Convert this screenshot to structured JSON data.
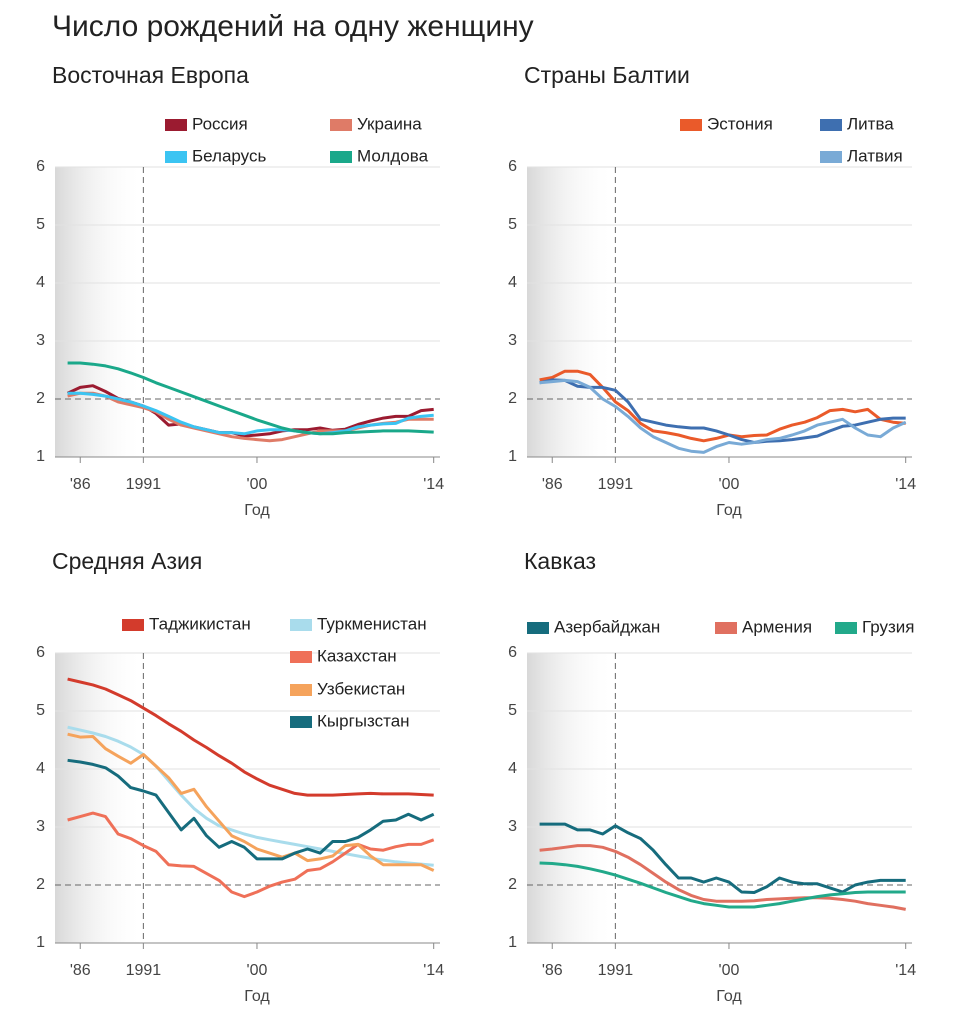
{
  "title": "Число рождений на одну женщину",
  "chart_data": [
    {
      "type": "line",
      "title": "Восточная Европа",
      "xlabel": "Год",
      "x": [
        1985,
        1986,
        1987,
        1988,
        1989,
        1990,
        1991,
        1992,
        1993,
        1994,
        1995,
        1996,
        1997,
        1998,
        1999,
        2000,
        2001,
        2002,
        2003,
        2004,
        2005,
        2006,
        2007,
        2008,
        2009,
        2010,
        2011,
        2012,
        2013,
        2014
      ],
      "xlim": [
        1984,
        2014.5
      ],
      "xticks": [
        {
          "value": 1986,
          "label": "'86"
        },
        1991,
        {
          "value": 2000,
          "label": "'00"
        },
        {
          "value": 2014,
          "label": "'14"
        }
      ],
      "ylim": [
        1,
        6
      ],
      "yticks": [
        1,
        2,
        3,
        4,
        5,
        6
      ],
      "hline": 2,
      "vline": 1991,
      "grid": true,
      "series": [
        {
          "name": "Россия",
          "color": "#9b1b30",
          "values": [
            2.1,
            2.2,
            2.23,
            2.13,
            2.01,
            1.95,
            1.88,
            1.75,
            1.55,
            1.57,
            1.52,
            1.47,
            1.42,
            1.42,
            1.36,
            1.38,
            1.4,
            1.45,
            1.47,
            1.47,
            1.5,
            1.46,
            1.48,
            1.56,
            1.62,
            1.67,
            1.7,
            1.7,
            1.8,
            1.82
          ]
        },
        {
          "name": "Украина",
          "color": "#df7b67",
          "values": [
            2.05,
            2.1,
            2.1,
            2.05,
            1.95,
            1.9,
            1.85,
            1.78,
            1.65,
            1.55,
            1.5,
            1.45,
            1.4,
            1.35,
            1.32,
            1.3,
            1.28,
            1.3,
            1.35,
            1.4,
            1.45,
            1.45,
            1.45,
            1.5,
            1.55,
            1.58,
            1.6,
            1.65,
            1.65,
            1.65
          ]
        },
        {
          "name": "Беларусь",
          "color": "#3bc4f2",
          "values": [
            2.1,
            2.1,
            2.08,
            2.05,
            2.0,
            1.95,
            1.88,
            1.8,
            1.7,
            1.6,
            1.52,
            1.47,
            1.42,
            1.42,
            1.4,
            1.45,
            1.47,
            1.47,
            1.45,
            1.42,
            1.4,
            1.42,
            1.45,
            1.52,
            1.55,
            1.57,
            1.58,
            1.67,
            1.7,
            1.72
          ]
        },
        {
          "name": "Молдова",
          "color": "#1aa88a",
          "values": [
            2.62,
            2.62,
            2.6,
            2.57,
            2.52,
            2.45,
            2.37,
            2.28,
            2.2,
            2.12,
            2.04,
            1.96,
            1.88,
            1.8,
            1.72,
            1.64,
            1.57,
            1.5,
            1.45,
            1.42,
            1.4,
            1.4,
            1.42,
            1.43,
            1.44,
            1.45,
            1.45,
            1.45,
            1.44,
            1.43
          ]
        }
      ]
    },
    {
      "type": "line",
      "title": "Страны Балтии",
      "xlabel": "Год",
      "x": [
        1985,
        1986,
        1987,
        1988,
        1989,
        1990,
        1991,
        1992,
        1993,
        1994,
        1995,
        1996,
        1997,
        1998,
        1999,
        2000,
        2001,
        2002,
        2003,
        2004,
        2005,
        2006,
        2007,
        2008,
        2009,
        2010,
        2011,
        2012,
        2013,
        2014
      ],
      "xlim": [
        1984,
        2014.5
      ],
      "xticks": [
        {
          "value": 1986,
          "label": "'86"
        },
        1991,
        {
          "value": 2000,
          "label": "'00"
        },
        {
          "value": 2014,
          "label": "'14"
        }
      ],
      "ylim": [
        1,
        6
      ],
      "yticks": [
        1,
        2,
        3,
        4,
        5,
        6
      ],
      "hline": 2,
      "vline": 1991,
      "grid": true,
      "series": [
        {
          "name": "Эстония",
          "color": "#ea5a2a",
          "values": [
            2.33,
            2.37,
            2.48,
            2.48,
            2.42,
            2.2,
            1.95,
            1.8,
            1.58,
            1.45,
            1.42,
            1.38,
            1.32,
            1.28,
            1.32,
            1.38,
            1.35,
            1.37,
            1.38,
            1.48,
            1.55,
            1.6,
            1.68,
            1.8,
            1.82,
            1.78,
            1.82,
            1.65,
            1.6,
            1.58
          ]
        },
        {
          "name": "Литва",
          "color": "#3e6fb0",
          "values": [
            2.28,
            2.33,
            2.32,
            2.22,
            2.2,
            2.2,
            2.15,
            1.95,
            1.65,
            1.6,
            1.55,
            1.52,
            1.5,
            1.5,
            1.45,
            1.38,
            1.3,
            1.25,
            1.27,
            1.28,
            1.3,
            1.33,
            1.36,
            1.45,
            1.53,
            1.55,
            1.6,
            1.65,
            1.67,
            1.67
          ]
        },
        {
          "name": "Латвия",
          "color": "#79aad6",
          "values": [
            2.28,
            2.3,
            2.32,
            2.3,
            2.2,
            2.0,
            1.87,
            1.7,
            1.5,
            1.35,
            1.25,
            1.15,
            1.1,
            1.08,
            1.18,
            1.25,
            1.22,
            1.25,
            1.3,
            1.32,
            1.38,
            1.45,
            1.55,
            1.6,
            1.65,
            1.5,
            1.38,
            1.35,
            1.5,
            1.6
          ]
        }
      ]
    },
    {
      "type": "line",
      "title": "Средняя Азия",
      "xlabel": "Год",
      "x": [
        1985,
        1986,
        1987,
        1988,
        1989,
        1990,
        1991,
        1992,
        1993,
        1994,
        1995,
        1996,
        1997,
        1998,
        1999,
        2000,
        2001,
        2002,
        2003,
        2004,
        2005,
        2006,
        2007,
        2008,
        2009,
        2010,
        2011,
        2012,
        2013,
        2014
      ],
      "xlim": [
        1984,
        2014.5
      ],
      "xticks": [
        {
          "value": 1986,
          "label": "'86"
        },
        1991,
        {
          "value": 2000,
          "label": "'00"
        },
        {
          "value": 2014,
          "label": "'14"
        }
      ],
      "ylim": [
        1,
        6
      ],
      "yticks": [
        1,
        2,
        3,
        4,
        5,
        6
      ],
      "hline": 2,
      "vline": 1991,
      "grid": true,
      "series": [
        {
          "name": "Таджикистан",
          "color": "#d33b2c",
          "values": [
            5.55,
            5.5,
            5.45,
            5.38,
            5.28,
            5.18,
            5.05,
            4.92,
            4.78,
            4.65,
            4.5,
            4.37,
            4.23,
            4.1,
            3.95,
            3.83,
            3.72,
            3.65,
            3.58,
            3.55,
            3.55,
            3.55,
            3.56,
            3.57,
            3.58,
            3.57,
            3.57,
            3.57,
            3.56,
            3.55
          ]
        },
        {
          "name": "Туркменистан",
          "color": "#a9dcec",
          "values": [
            4.72,
            4.67,
            4.62,
            4.56,
            4.48,
            4.38,
            4.25,
            4.05,
            3.8,
            3.55,
            3.32,
            3.15,
            3.02,
            2.95,
            2.88,
            2.82,
            2.78,
            2.74,
            2.7,
            2.66,
            2.62,
            2.58,
            2.54,
            2.5,
            2.46,
            2.43,
            2.4,
            2.38,
            2.36,
            2.34
          ]
        },
        {
          "name": "Казахстан",
          "color": "#ef7058",
          "values": [
            3.12,
            3.18,
            3.24,
            3.18,
            2.88,
            2.8,
            2.68,
            2.58,
            2.35,
            2.33,
            2.32,
            2.2,
            2.08,
            1.88,
            1.8,
            1.88,
            1.98,
            2.05,
            2.1,
            2.25,
            2.28,
            2.4,
            2.55,
            2.7,
            2.62,
            2.6,
            2.66,
            2.7,
            2.7,
            2.78
          ]
        },
        {
          "name": "Узбекистан",
          "color": "#f5a35c",
          "values": [
            4.6,
            4.55,
            4.56,
            4.35,
            4.22,
            4.1,
            4.25,
            4.05,
            3.85,
            3.58,
            3.65,
            3.35,
            3.1,
            2.85,
            2.75,
            2.62,
            2.55,
            2.48,
            2.55,
            2.42,
            2.45,
            2.5,
            2.68,
            2.7,
            2.5,
            2.35,
            2.35,
            2.35,
            2.35,
            2.25
          ]
        },
        {
          "name": "Кыргызстан",
          "color": "#166c7d",
          "values": [
            4.15,
            4.12,
            4.08,
            4.02,
            3.88,
            3.68,
            3.62,
            3.55,
            3.25,
            2.95,
            3.15,
            2.85,
            2.65,
            2.75,
            2.65,
            2.45,
            2.45,
            2.45,
            2.55,
            2.62,
            2.55,
            2.75,
            2.75,
            2.82,
            2.95,
            3.1,
            3.12,
            3.22,
            3.12,
            3.22
          ]
        }
      ]
    },
    {
      "type": "line",
      "title": "Кавказ",
      "xlabel": "Год",
      "x": [
        1985,
        1986,
        1987,
        1988,
        1989,
        1990,
        1991,
        1992,
        1993,
        1994,
        1995,
        1996,
        1997,
        1998,
        1999,
        2000,
        2001,
        2002,
        2003,
        2004,
        2005,
        2006,
        2007,
        2008,
        2009,
        2010,
        2011,
        2012,
        2013,
        2014
      ],
      "xlim": [
        1984,
        2014.5
      ],
      "xticks": [
        {
          "value": 1986,
          "label": "'86"
        },
        1991,
        {
          "value": 2000,
          "label": "'00"
        },
        {
          "value": 2014,
          "label": "'14"
        }
      ],
      "ylim": [
        1,
        6
      ],
      "yticks": [
        1,
        2,
        3,
        4,
        5,
        6
      ],
      "hline": 2,
      "vline": 1991,
      "grid": true,
      "series": [
        {
          "name": "Азербайджан",
          "color": "#166c7d",
          "values": [
            3.05,
            3.05,
            3.05,
            2.95,
            2.95,
            2.88,
            3.02,
            2.9,
            2.8,
            2.6,
            2.35,
            2.12,
            2.12,
            2.05,
            2.12,
            2.05,
            1.88,
            1.87,
            1.97,
            2.12,
            2.05,
            2.02,
            2.02,
            1.95,
            1.88,
            2.0,
            2.05,
            2.08,
            2.08,
            2.08
          ]
        },
        {
          "name": "Армения",
          "color": "#e07060",
          "values": [
            2.6,
            2.62,
            2.65,
            2.68,
            2.68,
            2.65,
            2.58,
            2.48,
            2.35,
            2.2,
            2.05,
            1.92,
            1.82,
            1.75,
            1.72,
            1.72,
            1.72,
            1.73,
            1.75,
            1.76,
            1.77,
            1.78,
            1.78,
            1.77,
            1.75,
            1.72,
            1.68,
            1.65,
            1.62,
            1.58
          ]
        },
        {
          "name": "Грузия",
          "color": "#22a98a",
          "values": [
            2.38,
            2.37,
            2.35,
            2.32,
            2.28,
            2.23,
            2.17,
            2.1,
            2.03,
            1.95,
            1.87,
            1.8,
            1.73,
            1.68,
            1.65,
            1.62,
            1.62,
            1.62,
            1.65,
            1.68,
            1.72,
            1.76,
            1.8,
            1.83,
            1.85,
            1.87,
            1.88,
            1.88,
            1.88,
            1.88
          ]
        }
      ]
    }
  ]
}
